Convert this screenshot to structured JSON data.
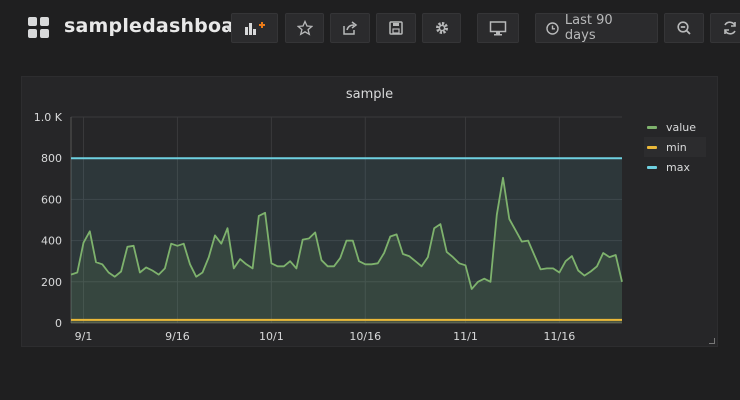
{
  "header": {
    "title": "sampledashboard",
    "time_range_label": "Last 90 days",
    "buttons": [
      "add-panel",
      "star",
      "share",
      "save",
      "settings",
      "tv-mode",
      "time-picker",
      "zoom-out",
      "refresh"
    ]
  },
  "panel": {
    "title": "sample",
    "legend": [
      {
        "name": "value",
        "color": "#7eb26d"
      },
      {
        "name": "min",
        "color": "#eab839"
      },
      {
        "name": "max",
        "color": "#6ed0e0"
      }
    ]
  },
  "chart_data": {
    "type": "line",
    "title": "sample",
    "x_start": "2016-08-30",
    "x_step_days": 1,
    "x_ticks": [
      "9/1",
      "9/16",
      "10/1",
      "10/16",
      "11/1",
      "11/16"
    ],
    "y_ticks": [
      "0",
      "200",
      "400",
      "600",
      "800",
      "1.0 K"
    ],
    "ylim": [
      0,
      1000
    ],
    "grid": true,
    "legend_position": "right",
    "series": [
      {
        "name": "value",
        "color": "#7eb26d",
        "values": [
          235,
          245,
          390,
          445,
          295,
          285,
          245,
          225,
          250,
          370,
          375,
          245,
          270,
          255,
          235,
          265,
          385,
          375,
          385,
          285,
          225,
          245,
          320,
          425,
          385,
          460,
          265,
          310,
          285,
          265,
          520,
          535,
          290,
          275,
          275,
          300,
          265,
          405,
          410,
          440,
          305,
          275,
          275,
          315,
          400,
          400,
          300,
          285,
          285,
          290,
          340,
          420,
          430,
          335,
          325,
          300,
          275,
          320,
          460,
          480,
          345,
          320,
          290,
          280,
          165,
          200,
          215,
          200,
          525,
          705,
          505,
          450,
          395,
          400,
          330,
          260,
          265,
          265,
          245,
          300,
          325,
          255,
          230,
          250,
          275,
          340,
          320,
          330,
          200
        ]
      },
      {
        "name": "min",
        "color": "#eab839",
        "values": [
          15
        ]
      },
      {
        "name": "max",
        "color": "#6ed0e0",
        "values": [
          800
        ]
      }
    ]
  }
}
